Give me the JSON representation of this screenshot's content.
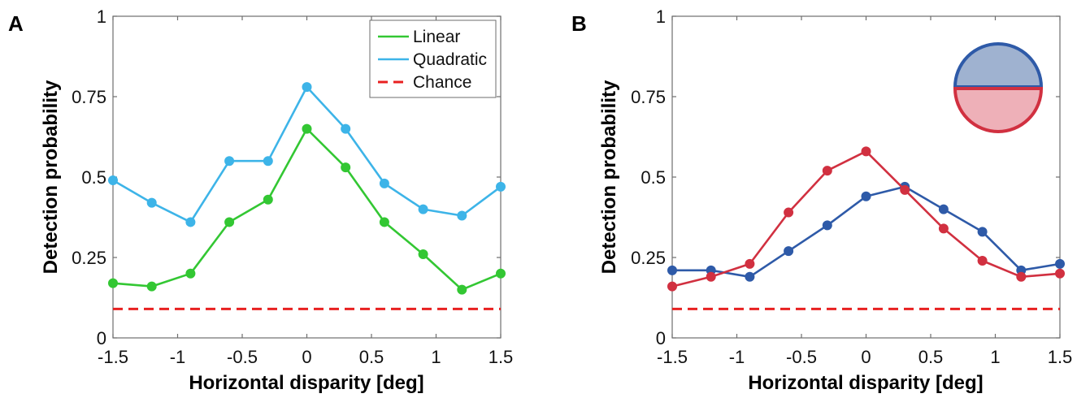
{
  "chart_data": [
    {
      "panel_label": "A",
      "type": "line",
      "xlabel": "Horizontal disparity [deg]",
      "ylabel": "Detection probability",
      "xlim": [
        -1.5,
        1.5
      ],
      "ylim": [
        0,
        1
      ],
      "xticks": [
        -1.5,
        -1,
        -0.5,
        0,
        0.5,
        1,
        1.5
      ],
      "xtick_labels": [
        "-1.5",
        "-1",
        "-0.5",
        "0",
        "0.5",
        "1",
        "1.5"
      ],
      "yticks": [
        0,
        0.25,
        0.5,
        0.75,
        1
      ],
      "ytick_labels": [
        "0",
        "0.25",
        "0.5",
        "0.75",
        "1"
      ],
      "legend_position": "top-right",
      "x": [
        -1.5,
        -1.2,
        -0.9,
        -0.6,
        -0.3,
        0,
        0.3,
        0.6,
        0.9,
        1.2,
        1.5
      ],
      "series": [
        {
          "name": "Linear",
          "color": "#33c733",
          "markers": true,
          "values": [
            0.17,
            0.16,
            0.2,
            0.36,
            0.43,
            0.65,
            0.53,
            0.36,
            0.26,
            0.15,
            0.2
          ]
        },
        {
          "name": "Quadratic",
          "color": "#3db4e8",
          "markers": true,
          "values": [
            0.49,
            0.42,
            0.36,
            0.55,
            0.55,
            0.78,
            0.65,
            0.48,
            0.4,
            0.38,
            0.47
          ]
        },
        {
          "name": "Chance",
          "color": "#e82020",
          "markers": false,
          "dashed": true,
          "values": [
            0.09,
            0.09,
            0.09,
            0.09,
            0.09,
            0.09,
            0.09,
            0.09,
            0.09,
            0.09,
            0.09
          ]
        }
      ]
    },
    {
      "panel_label": "B",
      "type": "line",
      "xlabel": "Horizontal disparity [deg]",
      "ylabel": "Detection probability",
      "xlim": [
        -1.5,
        1.5
      ],
      "ylim": [
        0,
        1
      ],
      "xticks": [
        -1.5,
        -1,
        -0.5,
        0,
        0.5,
        1,
        1.5
      ],
      "xtick_labels": [
        "-1.5",
        "-1",
        "-0.5",
        "0",
        "0.5",
        "1",
        "1.5"
      ],
      "yticks": [
        0,
        0.25,
        0.5,
        0.75,
        1
      ],
      "ytick_labels": [
        "0",
        "0.25",
        "0.5",
        "0.75",
        "1"
      ],
      "inset": "half-circle-icon",
      "inset_colors": {
        "top_fill": "#9fb2d0",
        "bottom_fill": "#eeb0b8",
        "top_stroke": "#2e5aa8",
        "bottom_stroke": "#d13040"
      },
      "x": [
        -1.5,
        -1.2,
        -0.9,
        -0.6,
        -0.3,
        0,
        0.3,
        0.6,
        0.9,
        1.2,
        1.5
      ],
      "series": [
        {
          "color": "#2e5aa8",
          "markers": true,
          "values": [
            0.21,
            0.21,
            0.19,
            0.27,
            0.35,
            0.44,
            0.47,
            0.4,
            0.33,
            0.21,
            0.23
          ]
        },
        {
          "color": "#d13040",
          "markers": true,
          "values": [
            0.16,
            0.19,
            0.23,
            0.39,
            0.52,
            0.58,
            0.46,
            0.34,
            0.24,
            0.19,
            0.2
          ]
        },
        {
          "color": "#e82020",
          "markers": false,
          "dashed": true,
          "values": [
            0.09,
            0.09,
            0.09,
            0.09,
            0.09,
            0.09,
            0.09,
            0.09,
            0.09,
            0.09,
            0.09
          ]
        }
      ]
    }
  ]
}
